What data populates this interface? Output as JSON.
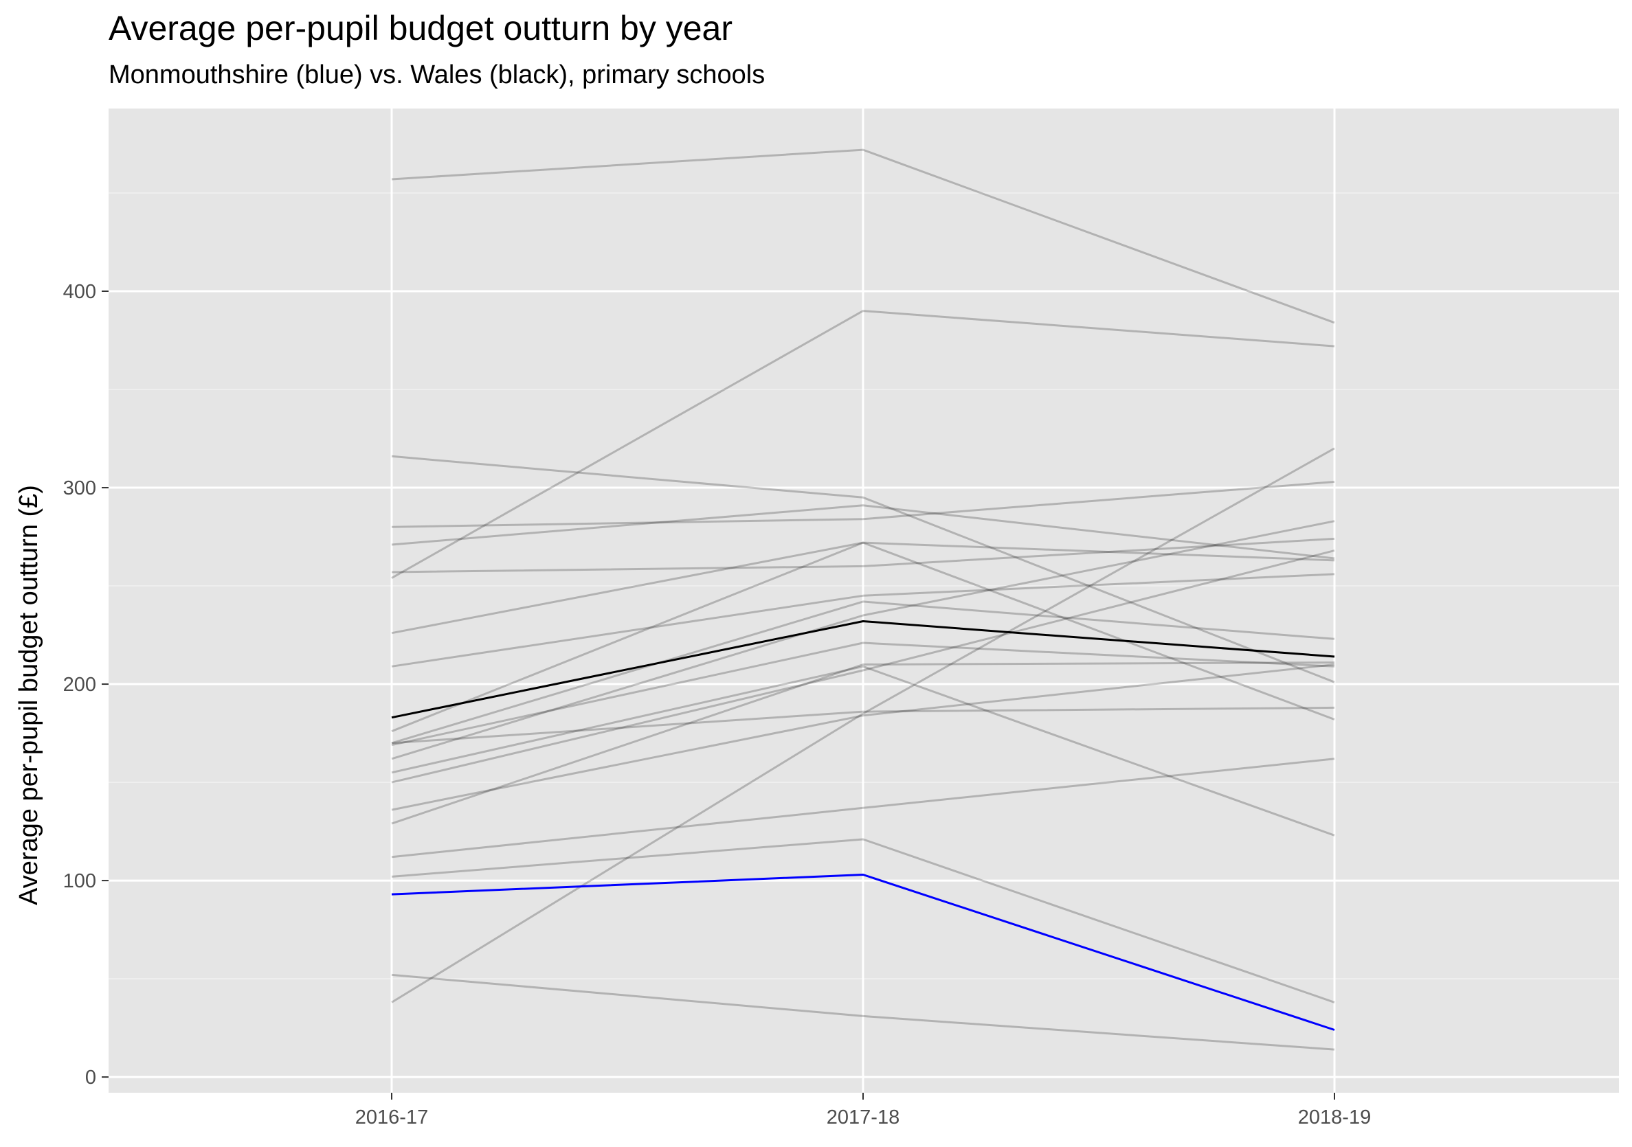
{
  "title": "Average per-pupil budget outturn by year",
  "subtitle": "Monmouthshire (blue) vs. Wales (black), primary schools",
  "chart_data": {
    "type": "line",
    "categories": [
      "2016-17",
      "2017-18",
      "2018-19"
    ],
    "ylabel": "Average per-pupil budget outturn (£)",
    "xlabel": "",
    "ylim": [
      -8,
      493
    ],
    "yticks": [
      0,
      100,
      200,
      300,
      400
    ],
    "grid": true,
    "colors": {
      "panel": "#e5e5e5",
      "grid": "#ffffff",
      "other": "#aaaaaa",
      "wales": "#000000",
      "monmouthshire": "#0000ff"
    },
    "series": [
      {
        "values": [
          457,
          472,
          384
        ],
        "role": "other"
      },
      {
        "values": [
          254,
          390,
          372
        ],
        "role": "other"
      },
      {
        "values": [
          316,
          295,
          201
        ],
        "role": "other"
      },
      {
        "values": [
          280,
          284,
          303
        ],
        "role": "other"
      },
      {
        "values": [
          271,
          291,
          264
        ],
        "role": "other"
      },
      {
        "values": [
          257,
          260,
          274
        ],
        "role": "other"
      },
      {
        "values": [
          226,
          272,
          263
        ],
        "role": "other"
      },
      {
        "values": [
          209,
          245,
          256
        ],
        "role": "other"
      },
      {
        "values": [
          176,
          272,
          182
        ],
        "role": "other"
      },
      {
        "values": [
          170,
          242,
          223
        ],
        "role": "other"
      },
      {
        "values": [
          169,
          221,
          209
        ],
        "role": "other"
      },
      {
        "values": [
          162,
          235,
          283
        ],
        "role": "other"
      },
      {
        "values": [
          155,
          209,
          123
        ],
        "role": "other"
      },
      {
        "values": [
          150,
          207,
          268
        ],
        "role": "other"
      },
      {
        "values": [
          136,
          184,
          210
        ],
        "role": "other"
      },
      {
        "values": [
          170,
          186,
          188
        ],
        "role": "other"
      },
      {
        "values": [
          129,
          210,
          211
        ],
        "role": "other"
      },
      {
        "values": [
          112,
          137,
          162
        ],
        "role": "other"
      },
      {
        "values": [
          102,
          121,
          38
        ],
        "role": "other"
      },
      {
        "values": [
          38,
          185,
          320
        ],
        "role": "other"
      },
      {
        "values": [
          52,
          31,
          14
        ],
        "role": "other"
      },
      {
        "name": "Wales",
        "values": [
          183,
          232,
          214
        ],
        "role": "wales"
      },
      {
        "name": "Monmouthshire",
        "values": [
          93,
          103,
          24
        ],
        "role": "monmouthshire"
      }
    ]
  }
}
